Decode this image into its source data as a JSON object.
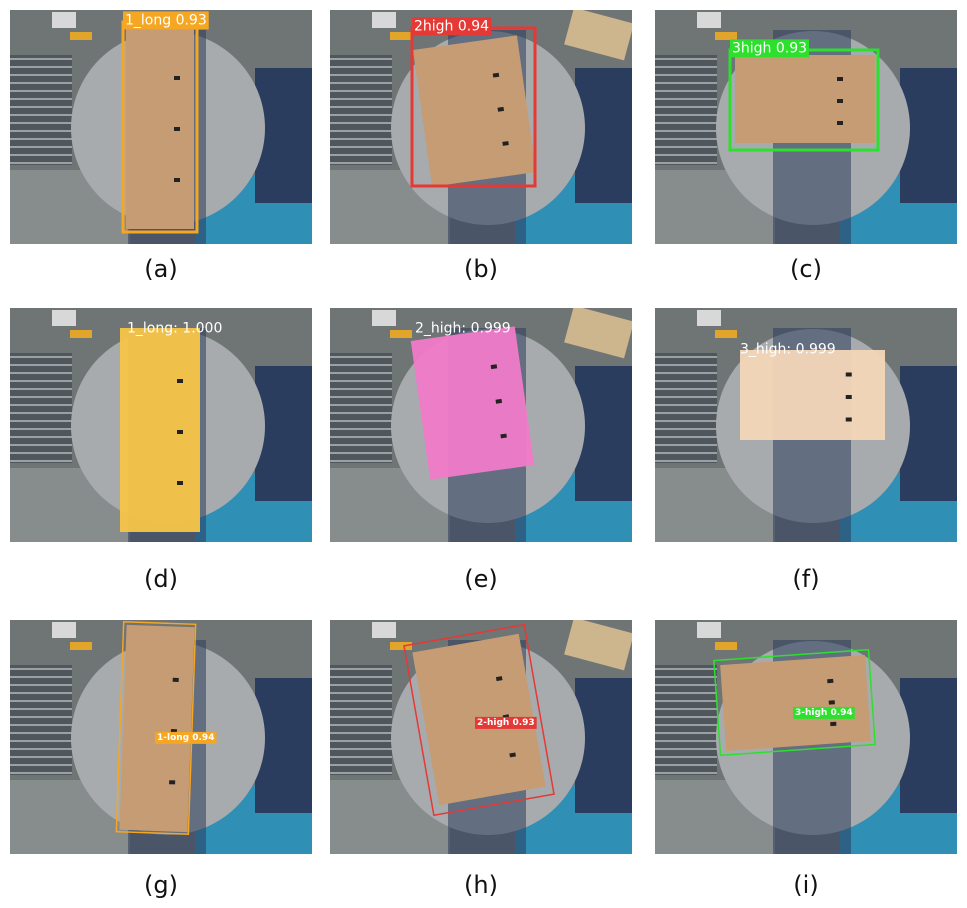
{
  "panels": [
    {
      "caption": "(a)",
      "detection": "1_long 0.93"
    },
    {
      "caption": "(b)",
      "detection": "2high 0.94"
    },
    {
      "caption": "(c)",
      "detection": "3high 0.93"
    },
    {
      "caption": "(d)",
      "detection": "1_long: 1.000"
    },
    {
      "caption": "(e)",
      "detection": "2_high: 0.999"
    },
    {
      "caption": "(f)",
      "detection": "3_high: 0.999"
    },
    {
      "caption": "(g)",
      "detection": "1-long 0.94"
    },
    {
      "caption": "(h)",
      "detection": "2-high 0.93"
    },
    {
      "caption": "(i)",
      "detection": "3-high 0.94"
    }
  ]
}
